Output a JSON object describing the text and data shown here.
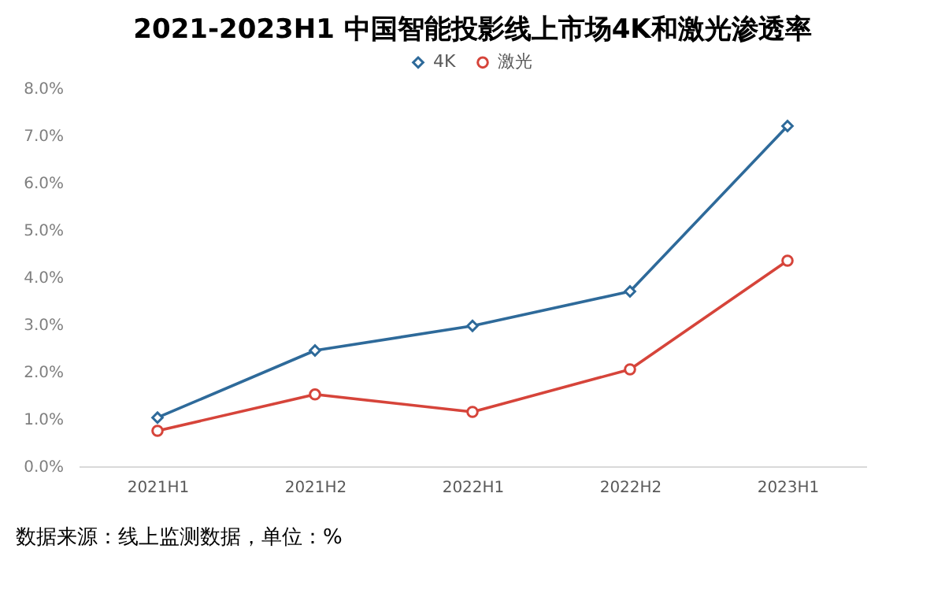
{
  "chart_data": {
    "type": "line",
    "title": "2021-2023H1 中国智能投影线上市场4K和激光渗透率",
    "categories": [
      "2021H1",
      "2021H2",
      "2022H1",
      "2022H2",
      "2023H1"
    ],
    "series": [
      {
        "name": "4K",
        "color": "#2e6a9a",
        "marker": "diamond",
        "values": [
          1.03,
          2.45,
          2.97,
          3.7,
          7.2
        ]
      },
      {
        "name": "激光",
        "color": "#d6443a",
        "marker": "circle",
        "values": [
          0.75,
          1.52,
          1.15,
          2.05,
          4.35
        ]
      }
    ],
    "ylim": [
      0,
      8
    ],
    "yticks": [
      {
        "value": 0,
        "label": "0.0%"
      },
      {
        "value": 1,
        "label": "1.0%"
      },
      {
        "value": 2,
        "label": "2.0%"
      },
      {
        "value": 3,
        "label": "3.0%"
      },
      {
        "value": 4,
        "label": "4.0%"
      },
      {
        "value": 5,
        "label": "5.0%"
      },
      {
        "value": 6,
        "label": "6.0%"
      },
      {
        "value": 7,
        "label": "7.0%"
      },
      {
        "value": 8,
        "label": "8.0%"
      }
    ],
    "grid": false,
    "legend": "top",
    "line_style": "solid",
    "annotations": [
      "数据来源：线上监测数据，单位：%"
    ]
  }
}
